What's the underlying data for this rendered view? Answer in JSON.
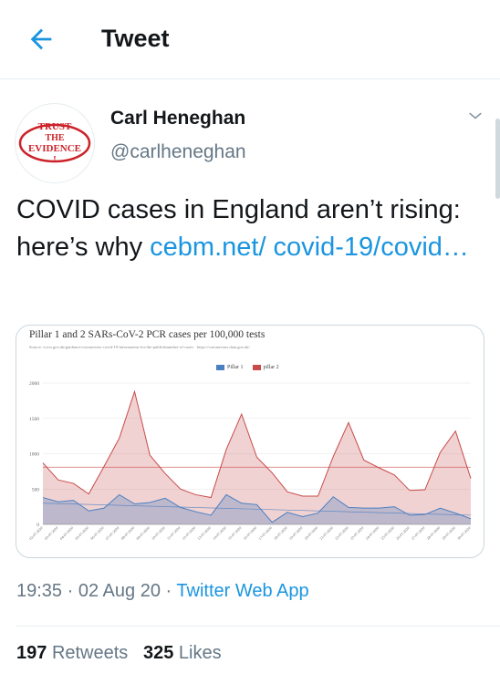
{
  "header": {
    "title": "Tweet"
  },
  "author": {
    "name": "Carl Heneghan",
    "handle": "@carlheneghan",
    "avatar_text": "TRUST THE EVIDENCE !"
  },
  "tweet": {
    "text": "COVID cases in England aren’t rising: here’s why ",
    "link_text": "cebm.net/ covid-19/covid…"
  },
  "meta": {
    "time": "19:35",
    "date": "02 Aug 20",
    "separator": "·",
    "source": "Twitter Web App"
  },
  "stats": {
    "retweets_count": "197",
    "retweets_label": "Retweets",
    "likes_count": "325",
    "likes_label": "Likes"
  },
  "colors": {
    "accent": "#1b95e0",
    "pillar1": "#4a7fc1",
    "pillar2": "#c84a4a"
  },
  "chart_data": {
    "type": "area",
    "title": "Pillar 1 and 2 SARs-CoV-2 PCR cases per 100,000 tests",
    "source": "Source: www.gov.uk/guidance/coronavirus-covid-19-information-for-the-public#number-of-cases · https://coronavirus.data.gov.uk/",
    "ylim": [
      0,
      2000
    ],
    "yticks": [
      "0",
      "500",
      "1000",
      "1500",
      "2000"
    ],
    "categories": [
      "02-07-2020",
      "03-07-2020",
      "04-07-2020",
      "05-07-2020",
      "06-07-2020",
      "07-07-2020",
      "08-07-2020",
      "09-07-2020",
      "10-07-2020",
      "11-07-2020",
      "12-07-2020",
      "13-07-2020",
      "14-07-2020",
      "15-07-2020",
      "16-07-2020",
      "17-07-2020",
      "18-07-2020",
      "19-07-2020",
      "20-07-2020",
      "21-07-2020",
      "22-07-2020",
      "23-07-2020",
      "24-07-2020",
      "25-07-2020",
      "26-07-2020",
      "27-07-2020",
      "28-07-2020",
      "29-07-2020",
      "30-07-2020"
    ],
    "series": [
      {
        "name": "Pillar 1",
        "values": [
          380,
          320,
          340,
          190,
          230,
          420,
          290,
          310,
          370,
          240,
          180,
          130,
          420,
          300,
          280,
          30,
          170,
          110,
          160,
          390,
          240,
          230,
          230,
          250,
          130,
          140,
          230,
          160,
          80
        ]
      },
      {
        "name": "pillar 2",
        "values": [
          870,
          630,
          580,
          430,
          820,
          1220,
          1880,
          980,
          720,
          500,
          420,
          380,
          1060,
          1560,
          950,
          730,
          460,
          400,
          400,
          960,
          1440,
          910,
          800,
          700,
          480,
          490,
          1020,
          1320,
          650
        ]
      }
    ],
    "trend_lines": [
      {
        "series": "Pillar 1",
        "start": 300,
        "end": 130
      },
      {
        "series": "pillar 2",
        "start": 810,
        "end": 810
      }
    ],
    "grid": true,
    "legend": "top"
  }
}
